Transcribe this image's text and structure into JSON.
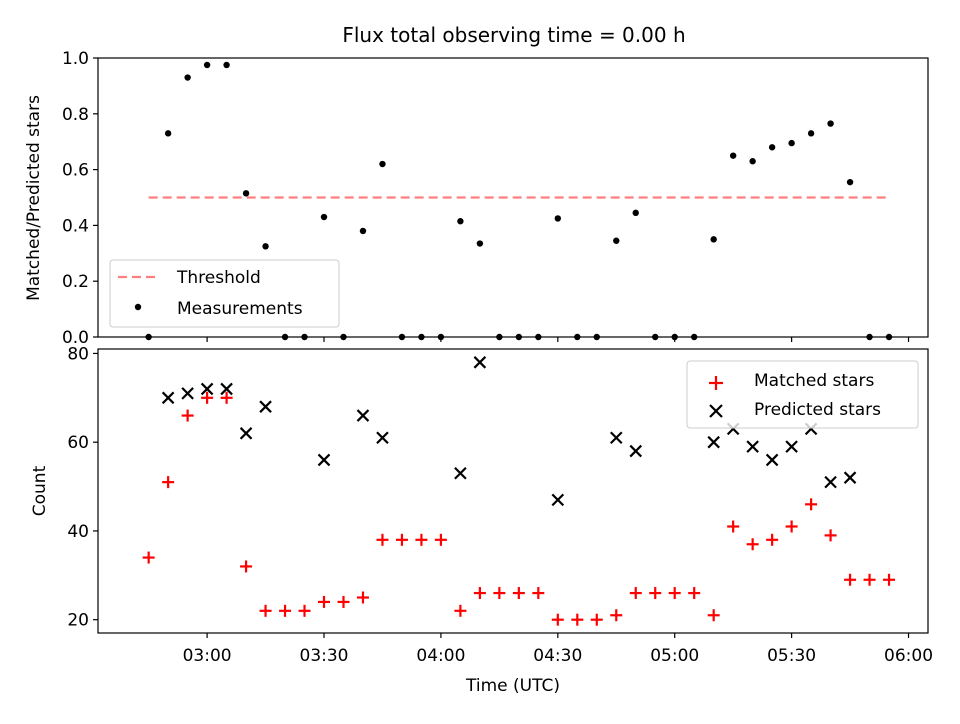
{
  "title": "Flux total observing time = 0.00 h",
  "chart_data": [
    {
      "type": "scatter",
      "ylabel": "Matched/Predicted stars",
      "ylim": [
        0,
        1.0
      ],
      "yticks": [
        "0.0",
        "0.2",
        "0.4",
        "0.6",
        "0.8",
        "1.0"
      ],
      "xlim": [
        "02:32",
        "06:05"
      ],
      "legend_position": "lower-left",
      "threshold": {
        "name": "Threshold",
        "value": 0.5,
        "color": "#ff7f7f",
        "start": "02:45",
        "end": "05:55"
      },
      "series": [
        {
          "name": "Measurements",
          "color": "#000000",
          "x": [
            "02:45",
            "02:50",
            "02:55",
            "03:00",
            "03:05",
            "03:10",
            "03:15",
            "03:20",
            "03:25",
            "03:30",
            "03:35",
            "03:40",
            "03:45",
            "03:50",
            "03:55",
            "04:00",
            "04:05",
            "04:10",
            "04:15",
            "04:20",
            "04:25",
            "04:30",
            "04:35",
            "04:40",
            "04:45",
            "04:50",
            "04:55",
            "05:00",
            "05:05",
            "05:10",
            "05:15",
            "05:20",
            "05:25",
            "05:30",
            "05:35",
            "05:40",
            "05:45",
            "05:50",
            "05:55"
          ],
          "y": [
            0.0,
            0.73,
            0.93,
            0.975,
            0.975,
            0.515,
            0.325,
            0.0,
            0.0,
            0.43,
            0.0,
            0.38,
            0.62,
            0.0,
            0.0,
            0.0,
            0.415,
            0.335,
            0.0,
            0.0,
            0.0,
            0.425,
            0.0,
            0.0,
            0.345,
            0.445,
            0.0,
            0.0,
            0.0,
            0.35,
            0.65,
            0.63,
            0.68,
            0.695,
            0.73,
            0.765,
            0.555,
            0.0,
            0.0
          ]
        }
      ]
    },
    {
      "type": "scatter",
      "ylabel": "Count",
      "xlabel": "Time (UTC)",
      "ylim": [
        17,
        81
      ],
      "yticks": [
        "20",
        "40",
        "60",
        "80"
      ],
      "xticks": [
        "03:00",
        "03:30",
        "04:00",
        "04:30",
        "05:00",
        "05:30",
        "06:00"
      ],
      "xlim": [
        "02:32",
        "06:05"
      ],
      "legend_position": "upper-right",
      "series": [
        {
          "name": "Matched stars",
          "marker": "+",
          "color": "#ff0000",
          "x": [
            "02:45",
            "02:50",
            "02:55",
            "03:00",
            "03:05",
            "03:10",
            "03:15",
            "03:20",
            "03:25",
            "03:30",
            "03:35",
            "03:40",
            "03:45",
            "03:50",
            "03:55",
            "04:00",
            "04:05",
            "04:10",
            "04:15",
            "04:20",
            "04:25",
            "04:30",
            "04:35",
            "04:40",
            "04:45",
            "04:50",
            "04:55",
            "05:00",
            "05:05",
            "05:10",
            "05:15",
            "05:20",
            "05:25",
            "05:30",
            "05:35",
            "05:40",
            "05:45",
            "05:50",
            "05:55"
          ],
          "y": [
            34,
            51,
            66,
            70,
            70,
            32,
            22,
            22,
            22,
            24,
            24,
            25,
            38,
            38,
            38,
            38,
            22,
            26,
            26,
            26,
            26,
            20,
            20,
            20,
            21,
            26,
            26,
            26,
            26,
            21,
            41,
            37,
            38,
            41,
            46,
            39,
            29,
            29,
            29
          ]
        },
        {
          "name": "Predicted stars",
          "marker": "x",
          "color": "#000000",
          "x": [
            "02:50",
            "02:55",
            "03:00",
            "03:05",
            "03:10",
            "03:15",
            "03:30",
            "03:40",
            "03:45",
            "04:05",
            "04:10",
            "04:30",
            "04:45",
            "04:50",
            "05:10",
            "05:15",
            "05:20",
            "05:25",
            "05:30",
            "05:35",
            "05:40",
            "05:45"
          ],
          "y": [
            70,
            71,
            72,
            72,
            62,
            68,
            56,
            66,
            61,
            53,
            78,
            47,
            61,
            58,
            60,
            63,
            59,
            56,
            59,
            63,
            51,
            52
          ]
        }
      ]
    }
  ]
}
